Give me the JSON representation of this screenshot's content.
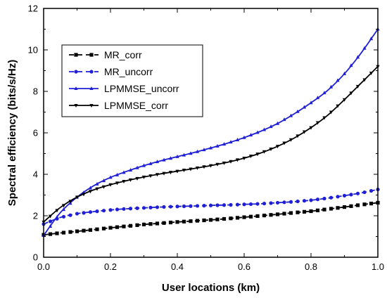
{
  "chart_data": {
    "type": "line",
    "title": "",
    "xlabel": "User locations (km)",
    "ylabel": "Spectral efficiency (bits/s/Hz)",
    "xlim": [
      0,
      1
    ],
    "ylim": [
      0,
      12
    ],
    "xticks": [
      "0.0",
      "0.2",
      "0.4",
      "0.6",
      "0.8",
      "1.0"
    ],
    "yticks": [
      "0",
      "2",
      "4",
      "6",
      "8",
      "10",
      "12"
    ],
    "grid": false,
    "legend_position": "top-left",
    "x": [
      0.0,
      0.05,
      0.1,
      0.15,
      0.2,
      0.25,
      0.3,
      0.35,
      0.4,
      0.45,
      0.5,
      0.55,
      0.6,
      0.65,
      0.7,
      0.75,
      0.8,
      0.85,
      0.9,
      0.95,
      1.0
    ],
    "series": [
      {
        "name": "MR_corr",
        "color": "#000000",
        "line": "dashed",
        "marker": "square",
        "values": [
          1.08,
          1.17,
          1.25,
          1.33,
          1.42,
          1.5,
          1.58,
          1.64,
          1.7,
          1.75,
          1.8,
          1.86,
          1.93,
          2.0,
          2.07,
          2.15,
          2.22,
          2.32,
          2.42,
          2.53,
          2.63
        ]
      },
      {
        "name": "MR_uncorr",
        "color": "#1f1fd6",
        "line": "dashed",
        "marker": "circle",
        "values": [
          1.6,
          1.92,
          2.1,
          2.2,
          2.28,
          2.34,
          2.38,
          2.42,
          2.45,
          2.47,
          2.5,
          2.52,
          2.55,
          2.58,
          2.63,
          2.68,
          2.75,
          2.85,
          2.97,
          3.1,
          3.27
        ]
      },
      {
        "name": "LPMMSE_uncorr",
        "color": "#1f1fd6",
        "line": "solid",
        "marker": "triangle",
        "values": [
          1.05,
          2.15,
          2.9,
          3.45,
          3.85,
          4.15,
          4.42,
          4.65,
          4.85,
          5.05,
          5.27,
          5.5,
          5.77,
          6.08,
          6.45,
          6.92,
          7.45,
          8.05,
          8.85,
          9.85,
          11.0
        ]
      },
      {
        "name": "LPMMSE_corr",
        "color": "#000000",
        "line": "solid",
        "marker": "down-triangle",
        "values": [
          1.7,
          2.4,
          2.9,
          3.25,
          3.5,
          3.7,
          3.87,
          4.02,
          4.15,
          4.28,
          4.42,
          4.58,
          4.78,
          5.03,
          5.35,
          5.75,
          6.25,
          6.85,
          7.6,
          8.4,
          9.2
        ]
      }
    ]
  }
}
